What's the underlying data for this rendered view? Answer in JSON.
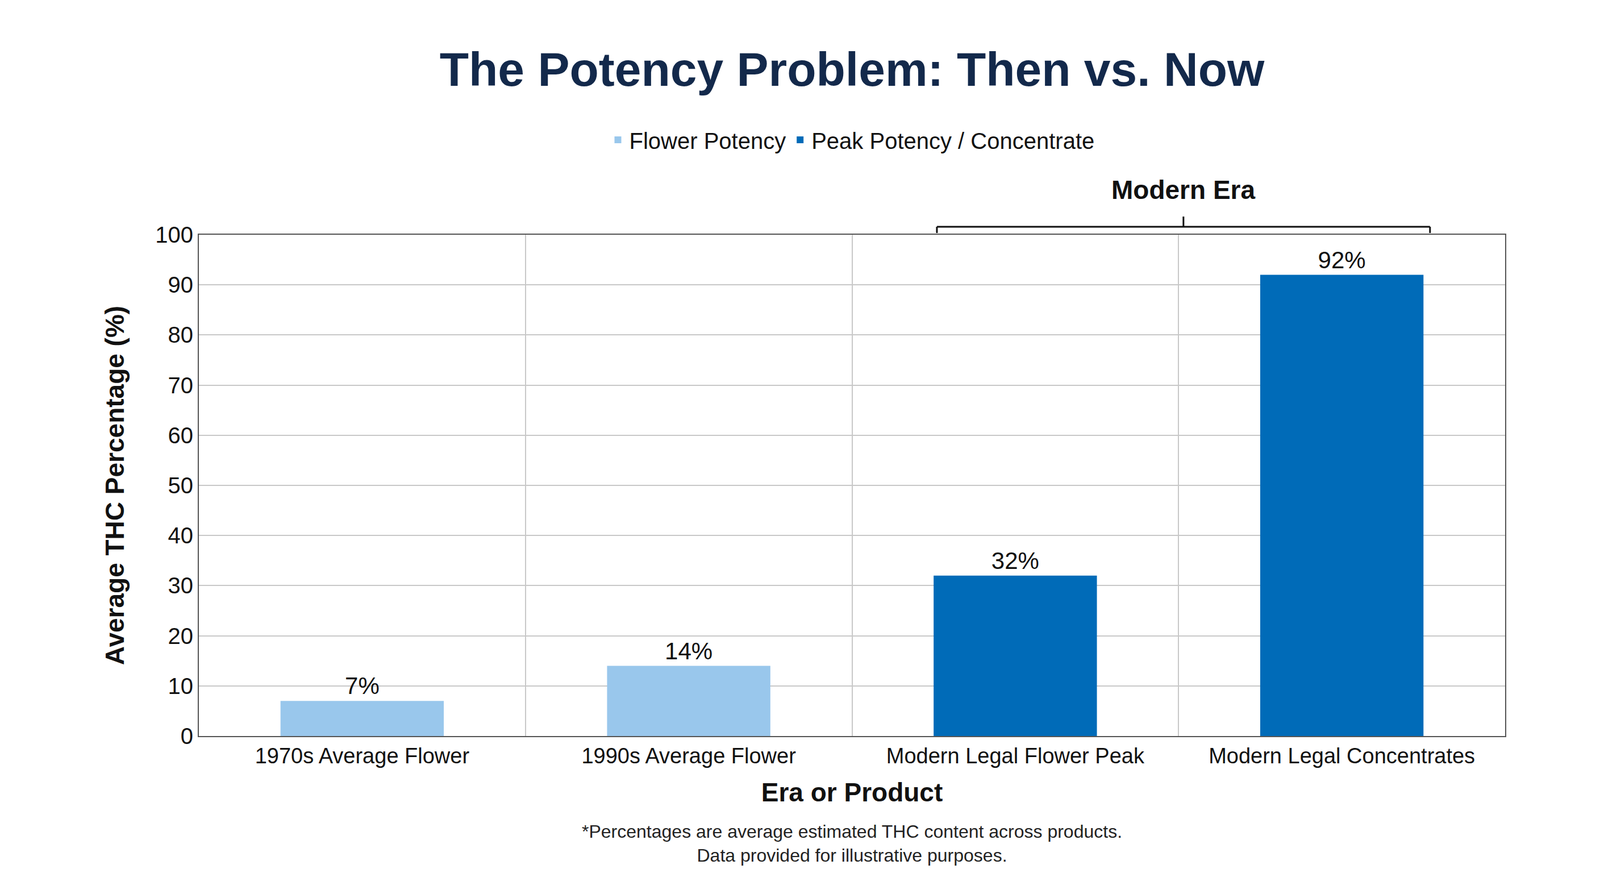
{
  "chart_data": {
    "type": "bar",
    "title": "The Potency Problem: Then vs. Now",
    "x_label": "Era or Product",
    "y_label": "Average THC Percentage (%)",
    "categories": [
      "1970s Average Flower",
      "1990s Average Flower",
      "Modern Legal Flower Peak",
      "Modern Legal Concentrates"
    ],
    "series": [
      {
        "name": "Flower Potency",
        "color": "#99c7ec",
        "values": [
          7,
          14,
          null,
          null
        ],
        "value_labels": [
          "7%",
          "14%",
          null,
          null
        ]
      },
      {
        "name": "Peak Potency / Concentrate",
        "color": "#006bb8",
        "values": [
          null,
          null,
          32,
          92
        ],
        "value_labels": [
          null,
          null,
          "32%",
          "92%"
        ]
      }
    ],
    "ylim": [
      0,
      100
    ],
    "yticks": [
      0,
      10,
      20,
      30,
      40,
      50,
      60,
      70,
      80,
      90,
      100
    ],
    "grid": true,
    "legend": "top",
    "data_labels": true,
    "annotations": [
      {
        "text": "Modern Era",
        "from": "Modern Legal Flower Peak",
        "to": "Modern Legal Concentrates"
      }
    ],
    "note": [
      "*Percentages are average estimated THC content across products.",
      "Data provided for illustrative purposes."
    ]
  }
}
